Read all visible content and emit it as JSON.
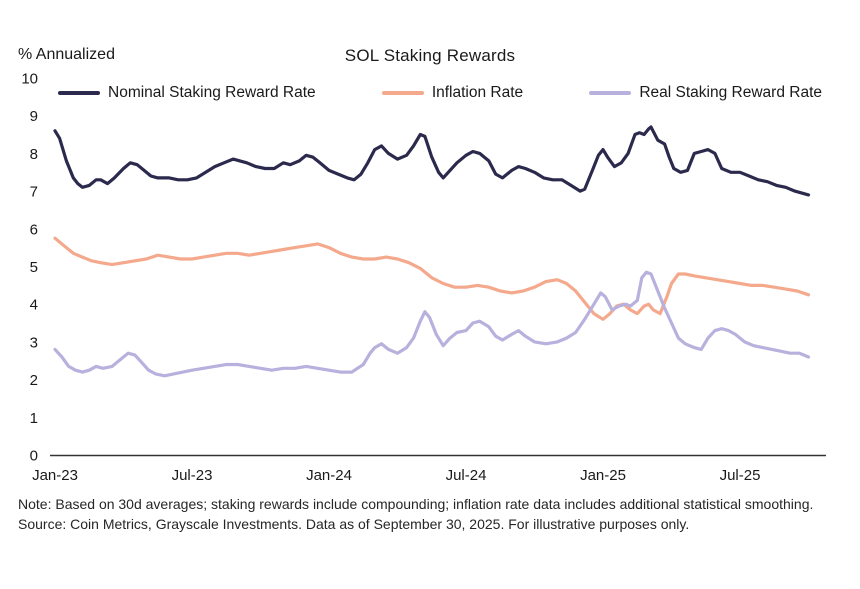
{
  "title": "SOL Staking Rewards",
  "y_unit_label": "% Annualized",
  "note": "Note: Based on 30d averages; staking rewards include compounding; inflation rate data includes additional statistical smoothing. Source: Coin Metrics, Grayscale Investments. Data as of September 30, 2025. For illustrative purposes only.",
  "colors": {
    "nominal": "#2b2a4d",
    "inflation": "#f4a98c",
    "real": "#b8b1dd",
    "axis": "#333333",
    "text": "#1a1a1a"
  },
  "chart_data": {
    "type": "line",
    "title": "SOL Staking Rewards",
    "ylabel": "% Annualized",
    "ylim": [
      0,
      10
    ],
    "y_ticks": [
      0,
      1,
      2,
      3,
      4,
      5,
      6,
      7,
      8,
      9,
      10
    ],
    "x_unit": "months since Jan-2023",
    "xlim": [
      0,
      33.4
    ],
    "x_ticks": [
      {
        "pos": 0,
        "label": "Jan-23"
      },
      {
        "pos": 6,
        "label": "Jul-23"
      },
      {
        "pos": 12,
        "label": "Jan-24"
      },
      {
        "pos": 18,
        "label": "Jul-24"
      },
      {
        "pos": 24,
        "label": "Jan-25"
      },
      {
        "pos": 30,
        "label": "Jul-25"
      }
    ],
    "grid": false,
    "legend_position": "top",
    "series": [
      {
        "name": "Nominal Staking Reward Rate",
        "color": "#2b2a4d",
        "points": [
          [
            0,
            8.6
          ],
          [
            0.2,
            8.4
          ],
          [
            0.5,
            7.8
          ],
          [
            0.8,
            7.35
          ],
          [
            1,
            7.2
          ],
          [
            1.2,
            7.1
          ],
          [
            1.5,
            7.15
          ],
          [
            1.8,
            7.3
          ],
          [
            2,
            7.3
          ],
          [
            2.3,
            7.2
          ],
          [
            2.6,
            7.35
          ],
          [
            3,
            7.6
          ],
          [
            3.3,
            7.75
          ],
          [
            3.6,
            7.7
          ],
          [
            3.9,
            7.55
          ],
          [
            4.2,
            7.4
          ],
          [
            4.5,
            7.35
          ],
          [
            5,
            7.35
          ],
          [
            5.4,
            7.3
          ],
          [
            5.8,
            7.3
          ],
          [
            6.2,
            7.35
          ],
          [
            6.6,
            7.5
          ],
          [
            7,
            7.65
          ],
          [
            7.4,
            7.75
          ],
          [
            7.8,
            7.85
          ],
          [
            8.1,
            7.8
          ],
          [
            8.4,
            7.75
          ],
          [
            8.8,
            7.65
          ],
          [
            9.2,
            7.6
          ],
          [
            9.6,
            7.6
          ],
          [
            10,
            7.75
          ],
          [
            10.3,
            7.7
          ],
          [
            10.7,
            7.8
          ],
          [
            11,
            7.95
          ],
          [
            11.3,
            7.9
          ],
          [
            11.6,
            7.75
          ],
          [
            12,
            7.55
          ],
          [
            12.4,
            7.45
          ],
          [
            12.8,
            7.35
          ],
          [
            13.1,
            7.3
          ],
          [
            13.4,
            7.45
          ],
          [
            13.7,
            7.75
          ],
          [
            14,
            8.1
          ],
          [
            14.3,
            8.2
          ],
          [
            14.6,
            8.0
          ],
          [
            15,
            7.85
          ],
          [
            15.4,
            7.95
          ],
          [
            15.7,
            8.2
          ],
          [
            16,
            8.5
          ],
          [
            16.2,
            8.45
          ],
          [
            16.5,
            7.9
          ],
          [
            16.8,
            7.5
          ],
          [
            17,
            7.35
          ],
          [
            17.3,
            7.55
          ],
          [
            17.6,
            7.75
          ],
          [
            18,
            7.95
          ],
          [
            18.3,
            8.05
          ],
          [
            18.6,
            8.0
          ],
          [
            19,
            7.8
          ],
          [
            19.3,
            7.45
          ],
          [
            19.6,
            7.35
          ],
          [
            20,
            7.55
          ],
          [
            20.3,
            7.65
          ],
          [
            20.6,
            7.6
          ],
          [
            21,
            7.5
          ],
          [
            21.4,
            7.35
          ],
          [
            21.8,
            7.3
          ],
          [
            22.2,
            7.3
          ],
          [
            22.6,
            7.15
          ],
          [
            23,
            7.0
          ],
          [
            23.2,
            7.05
          ],
          [
            23.5,
            7.5
          ],
          [
            23.8,
            7.95
          ],
          [
            24,
            8.1
          ],
          [
            24.2,
            7.9
          ],
          [
            24.5,
            7.65
          ],
          [
            24.8,
            7.75
          ],
          [
            25.1,
            8.0
          ],
          [
            25.4,
            8.5
          ],
          [
            25.6,
            8.55
          ],
          [
            25.8,
            8.5
          ],
          [
            26,
            8.65
          ],
          [
            26.1,
            8.7
          ],
          [
            26.4,
            8.35
          ],
          [
            26.7,
            8.25
          ],
          [
            26.9,
            7.9
          ],
          [
            27.1,
            7.6
          ],
          [
            27.4,
            7.5
          ],
          [
            27.7,
            7.55
          ],
          [
            28,
            8.0
          ],
          [
            28.3,
            8.05
          ],
          [
            28.6,
            8.1
          ],
          [
            28.9,
            8.0
          ],
          [
            29.2,
            7.6
          ],
          [
            29.6,
            7.5
          ],
          [
            30,
            7.5
          ],
          [
            30.4,
            7.4
          ],
          [
            30.8,
            7.3
          ],
          [
            31.2,
            7.25
          ],
          [
            31.6,
            7.15
          ],
          [
            32,
            7.1
          ],
          [
            32.4,
            7.0
          ],
          [
            33,
            6.9
          ]
        ]
      },
      {
        "name": "Inflation Rate",
        "color": "#f4a98c",
        "points": [
          [
            0,
            5.75
          ],
          [
            0.4,
            5.55
          ],
          [
            0.8,
            5.35
          ],
          [
            1.2,
            5.25
          ],
          [
            1.6,
            5.15
          ],
          [
            2,
            5.1
          ],
          [
            2.5,
            5.05
          ],
          [
            3,
            5.1
          ],
          [
            3.5,
            5.15
          ],
          [
            4,
            5.2
          ],
          [
            4.5,
            5.3
          ],
          [
            5,
            5.25
          ],
          [
            5.5,
            5.2
          ],
          [
            6,
            5.2
          ],
          [
            6.5,
            5.25
          ],
          [
            7,
            5.3
          ],
          [
            7.5,
            5.35
          ],
          [
            8,
            5.35
          ],
          [
            8.5,
            5.3
          ],
          [
            9,
            5.35
          ],
          [
            9.5,
            5.4
          ],
          [
            10,
            5.45
          ],
          [
            10.5,
            5.5
          ],
          [
            11,
            5.55
          ],
          [
            11.5,
            5.6
          ],
          [
            12,
            5.5
          ],
          [
            12.5,
            5.35
          ],
          [
            13,
            5.25
          ],
          [
            13.5,
            5.2
          ],
          [
            14,
            5.2
          ],
          [
            14.5,
            5.25
          ],
          [
            15,
            5.2
          ],
          [
            15.5,
            5.1
          ],
          [
            16,
            4.95
          ],
          [
            16.5,
            4.7
          ],
          [
            17,
            4.55
          ],
          [
            17.5,
            4.45
          ],
          [
            18,
            4.45
          ],
          [
            18.5,
            4.5
          ],
          [
            19,
            4.45
          ],
          [
            19.5,
            4.35
          ],
          [
            20,
            4.3
          ],
          [
            20.5,
            4.35
          ],
          [
            21,
            4.45
          ],
          [
            21.5,
            4.6
          ],
          [
            22,
            4.65
          ],
          [
            22.4,
            4.55
          ],
          [
            22.8,
            4.35
          ],
          [
            23.2,
            4.05
          ],
          [
            23.6,
            3.75
          ],
          [
            24,
            3.6
          ],
          [
            24.3,
            3.75
          ],
          [
            24.6,
            3.95
          ],
          [
            24.9,
            4.0
          ],
          [
            25.2,
            3.85
          ],
          [
            25.5,
            3.75
          ],
          [
            25.8,
            3.95
          ],
          [
            26,
            4.0
          ],
          [
            26.2,
            3.85
          ],
          [
            26.5,
            3.75
          ],
          [
            26.8,
            4.2
          ],
          [
            27,
            4.55
          ],
          [
            27.3,
            4.8
          ],
          [
            27.6,
            4.8
          ],
          [
            28,
            4.75
          ],
          [
            28.5,
            4.7
          ],
          [
            29,
            4.65
          ],
          [
            29.5,
            4.6
          ],
          [
            30,
            4.55
          ],
          [
            30.5,
            4.5
          ],
          [
            31,
            4.5
          ],
          [
            31.5,
            4.45
          ],
          [
            32,
            4.4
          ],
          [
            32.5,
            4.35
          ],
          [
            33,
            4.25
          ]
        ]
      },
      {
        "name": "Real Staking Reward Rate",
        "color": "#b8b1dd",
        "points": [
          [
            0,
            2.8
          ],
          [
            0.3,
            2.6
          ],
          [
            0.6,
            2.35
          ],
          [
            0.9,
            2.25
          ],
          [
            1.2,
            2.2
          ],
          [
            1.5,
            2.25
          ],
          [
            1.8,
            2.35
          ],
          [
            2.1,
            2.3
          ],
          [
            2.5,
            2.35
          ],
          [
            2.9,
            2.55
          ],
          [
            3.2,
            2.7
          ],
          [
            3.5,
            2.65
          ],
          [
            3.8,
            2.45
          ],
          [
            4.1,
            2.25
          ],
          [
            4.4,
            2.15
          ],
          [
            4.8,
            2.1
          ],
          [
            5.2,
            2.15
          ],
          [
            5.6,
            2.2
          ],
          [
            6,
            2.25
          ],
          [
            6.5,
            2.3
          ],
          [
            7,
            2.35
          ],
          [
            7.5,
            2.4
          ],
          [
            8,
            2.4
          ],
          [
            8.5,
            2.35
          ],
          [
            9,
            2.3
          ],
          [
            9.5,
            2.25
          ],
          [
            10,
            2.3
          ],
          [
            10.5,
            2.3
          ],
          [
            11,
            2.35
          ],
          [
            11.5,
            2.3
          ],
          [
            12,
            2.25
          ],
          [
            12.5,
            2.2
          ],
          [
            13,
            2.2
          ],
          [
            13.5,
            2.4
          ],
          [
            13.8,
            2.7
          ],
          [
            14,
            2.85
          ],
          [
            14.3,
            2.95
          ],
          [
            14.6,
            2.8
          ],
          [
            15,
            2.7
          ],
          [
            15.4,
            2.85
          ],
          [
            15.7,
            3.1
          ],
          [
            16,
            3.55
          ],
          [
            16.2,
            3.8
          ],
          [
            16.4,
            3.65
          ],
          [
            16.7,
            3.2
          ],
          [
            17,
            2.9
          ],
          [
            17.3,
            3.1
          ],
          [
            17.6,
            3.25
          ],
          [
            18,
            3.3
          ],
          [
            18.3,
            3.5
          ],
          [
            18.6,
            3.55
          ],
          [
            19,
            3.4
          ],
          [
            19.3,
            3.15
          ],
          [
            19.6,
            3.05
          ],
          [
            20,
            3.2
          ],
          [
            20.3,
            3.3
          ],
          [
            20.6,
            3.15
          ],
          [
            21,
            3.0
          ],
          [
            21.5,
            2.95
          ],
          [
            22,
            3.0
          ],
          [
            22.4,
            3.1
          ],
          [
            22.8,
            3.25
          ],
          [
            23.2,
            3.6
          ],
          [
            23.6,
            4.0
          ],
          [
            23.9,
            4.3
          ],
          [
            24.1,
            4.2
          ],
          [
            24.4,
            3.85
          ],
          [
            24.7,
            3.95
          ],
          [
            25,
            4.0
          ],
          [
            25.2,
            3.95
          ],
          [
            25.5,
            4.1
          ],
          [
            25.7,
            4.7
          ],
          [
            25.9,
            4.85
          ],
          [
            26.1,
            4.8
          ],
          [
            26.4,
            4.35
          ],
          [
            26.7,
            3.9
          ],
          [
            27,
            3.5
          ],
          [
            27.3,
            3.1
          ],
          [
            27.6,
            2.95
          ],
          [
            28,
            2.85
          ],
          [
            28.3,
            2.8
          ],
          [
            28.6,
            3.1
          ],
          [
            28.9,
            3.3
          ],
          [
            29.2,
            3.35
          ],
          [
            29.5,
            3.3
          ],
          [
            29.8,
            3.2
          ],
          [
            30.2,
            3.0
          ],
          [
            30.6,
            2.9
          ],
          [
            31,
            2.85
          ],
          [
            31.4,
            2.8
          ],
          [
            31.8,
            2.75
          ],
          [
            32.2,
            2.7
          ],
          [
            32.6,
            2.7
          ],
          [
            33,
            2.6
          ]
        ]
      }
    ]
  }
}
